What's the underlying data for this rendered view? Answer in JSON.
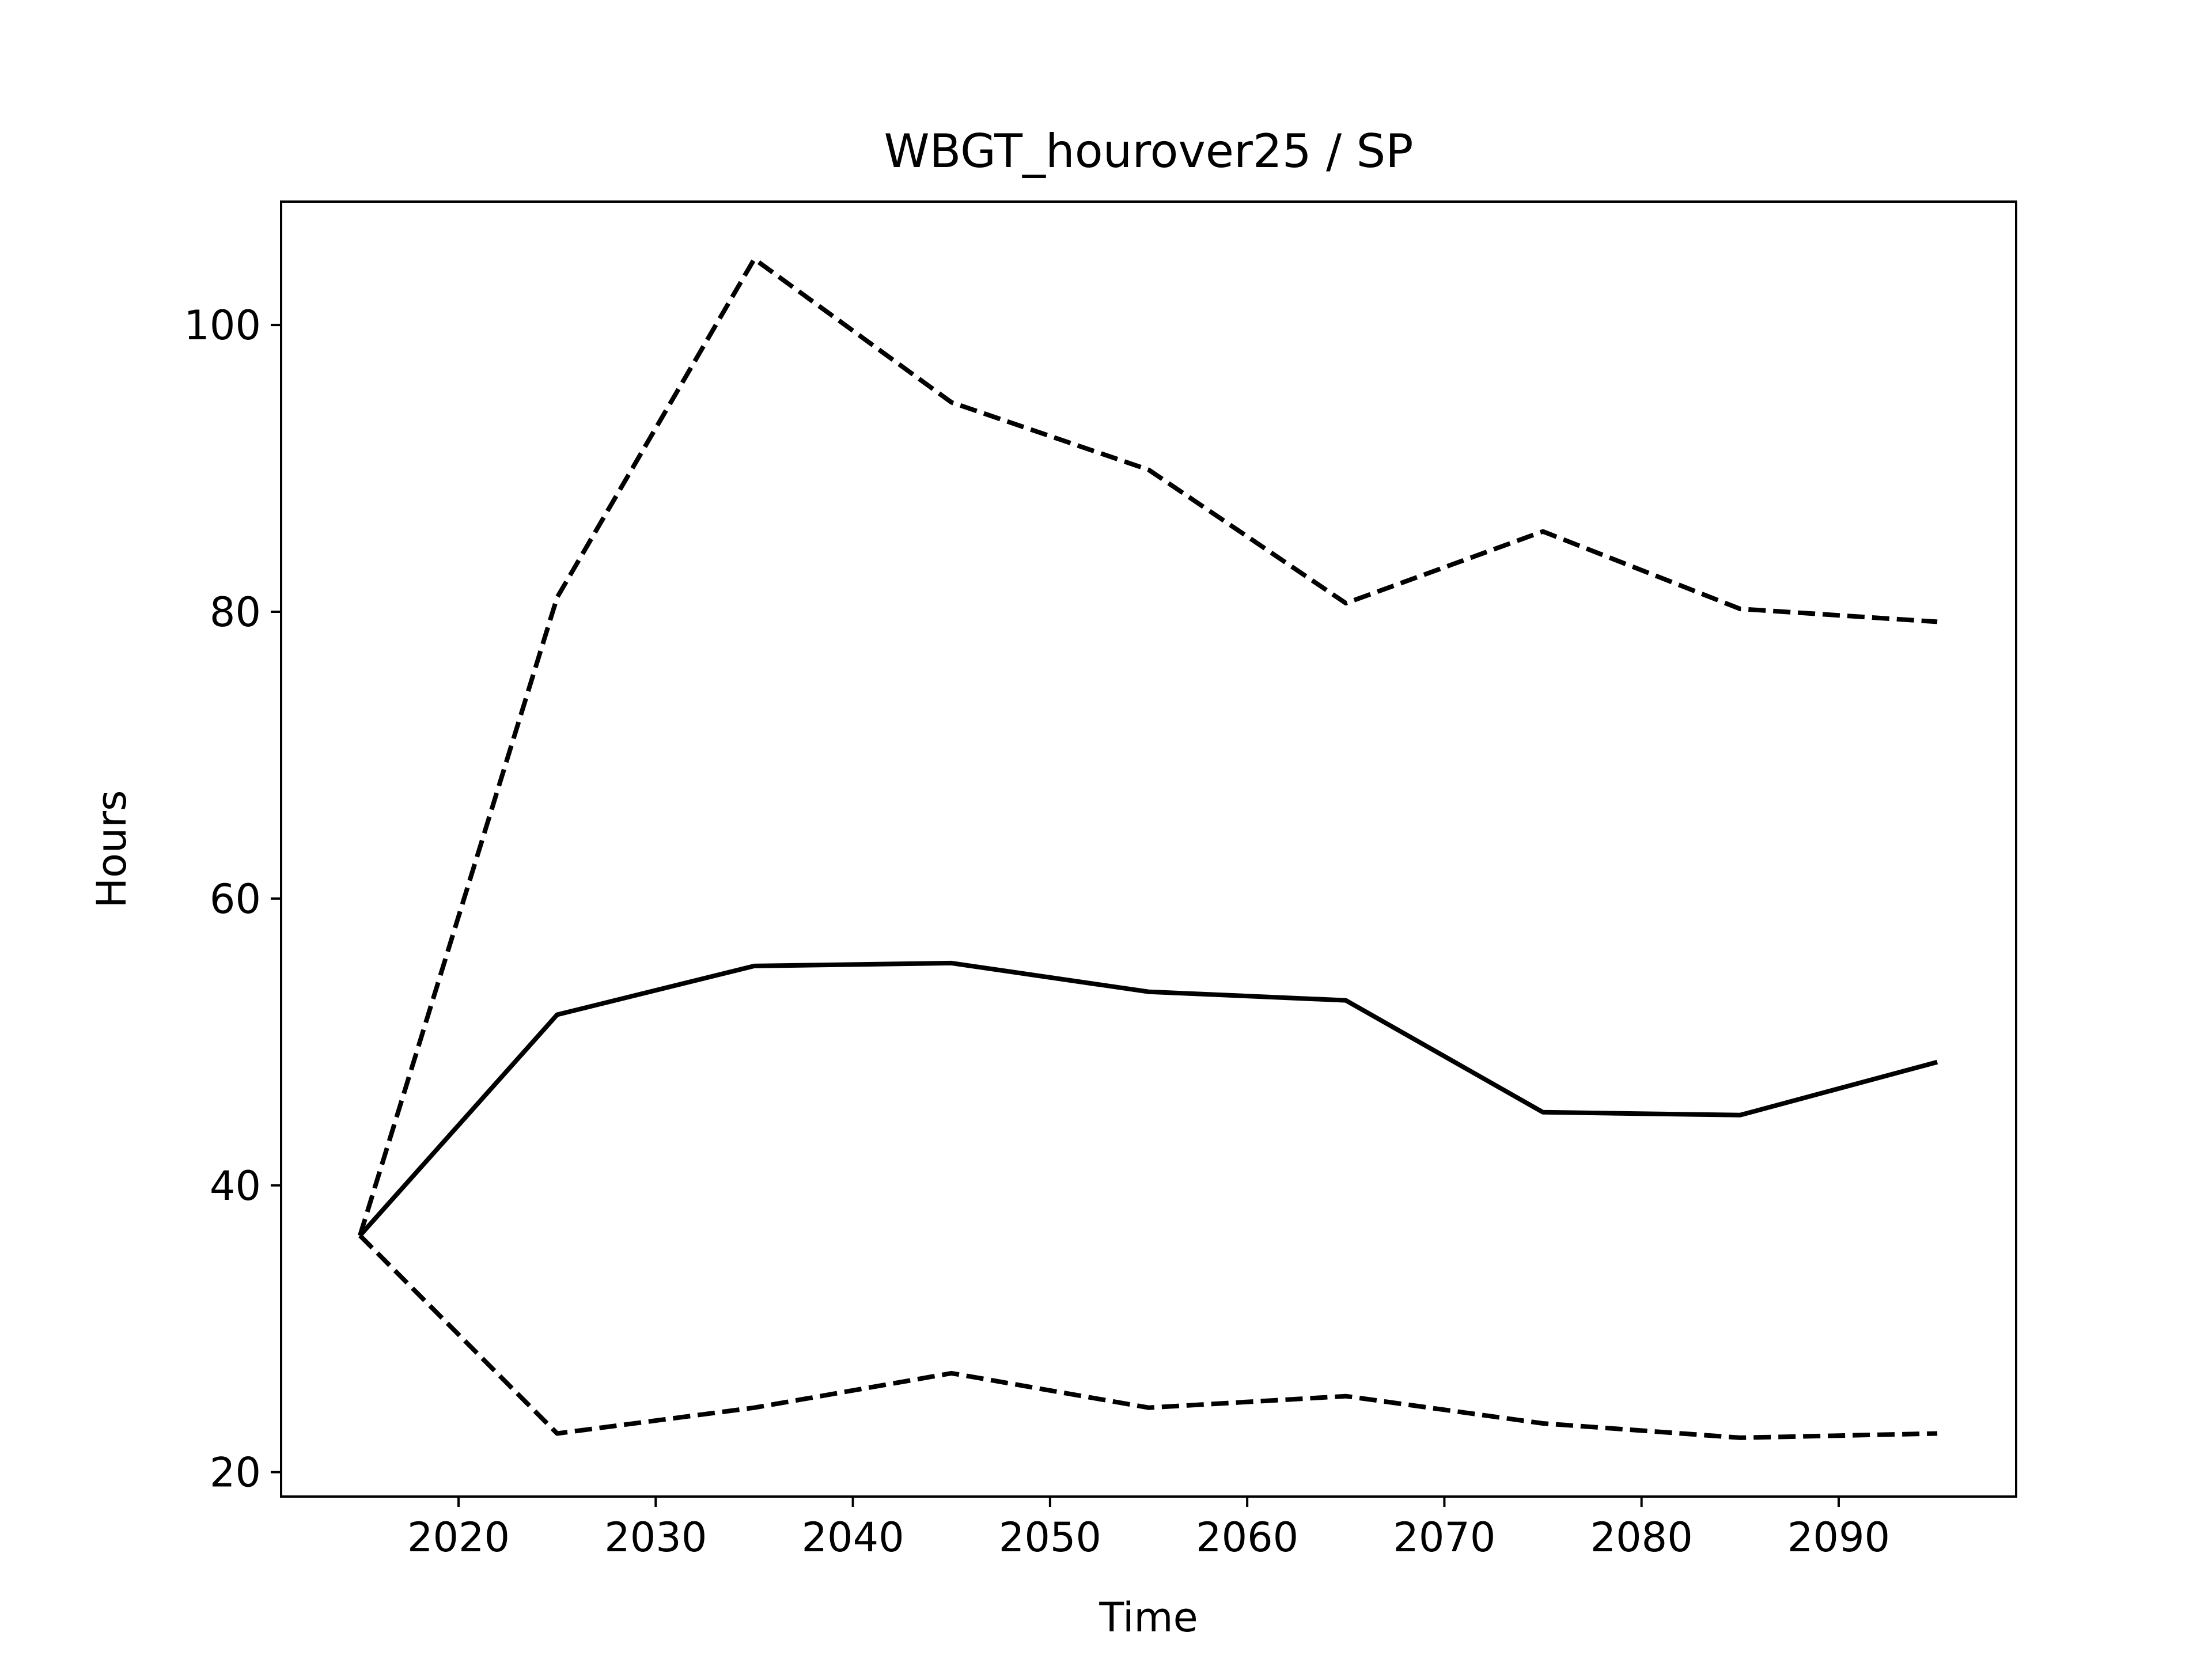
{
  "chart_data": {
    "type": "line",
    "title": "WBGT_hourover25 / SP",
    "xlabel": "Time",
    "ylabel": "Hours",
    "xlim": [
      2011,
      2099
    ],
    "ylim": [
      18.3,
      108.6
    ],
    "xticks": [
      2020,
      2030,
      2040,
      2050,
      2060,
      2070,
      2080,
      2090
    ],
    "yticks": [
      20,
      40,
      60,
      80,
      100
    ],
    "xtick_labels": [
      "2020",
      "2030",
      "2040",
      "2050",
      "2060",
      "2070",
      "2080",
      "2090"
    ],
    "ytick_labels": [
      "20",
      "40",
      "60",
      "80",
      "100"
    ],
    "grid": false,
    "legend": null,
    "x": [
      2015,
      2025,
      2035,
      2045,
      2055,
      2065,
      2075,
      2085,
      2095
    ],
    "series": [
      {
        "style": "solid",
        "color": "#000000",
        "values": [
          36.5,
          51.9,
          55.3,
          55.5,
          53.5,
          52.9,
          45.1,
          44.9,
          48.6
        ]
      },
      {
        "style": "dashed",
        "color": "#000000",
        "values": [
          36.5,
          81.0,
          104.6,
          94.6,
          89.9,
          80.6,
          85.6,
          80.2,
          79.3
        ]
      },
      {
        "style": "dashed",
        "color": "#000000",
        "values": [
          36.5,
          22.7,
          24.5,
          26.9,
          24.5,
          25.3,
          23.4,
          22.4,
          22.7
        ]
      }
    ]
  }
}
